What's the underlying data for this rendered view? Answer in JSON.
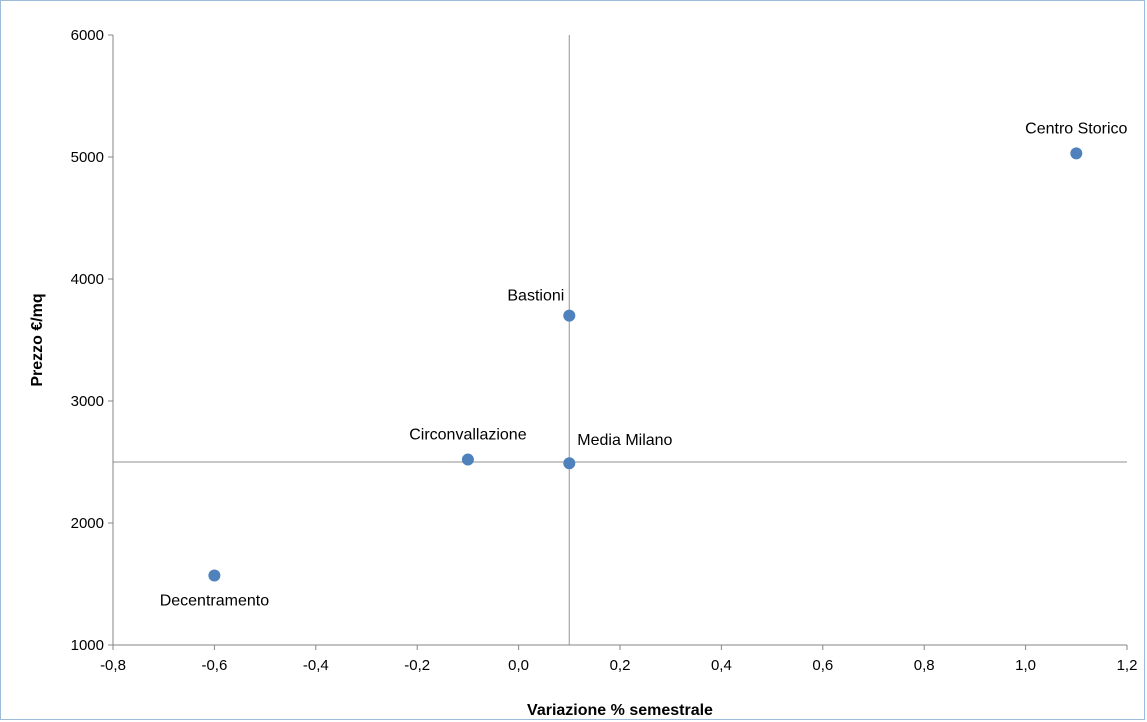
{
  "chart_data": {
    "type": "scatter",
    "xlabel": "Variazione % semestrale",
    "ylabel": "Prezzo €/mq",
    "xlim": [
      -0.8,
      1.2
    ],
    "ylim": [
      1000,
      6000
    ],
    "x_ticks": [
      "-0,8",
      "-0,6",
      "-0,4",
      "-0,2",
      "0,0",
      "0,2",
      "0,4",
      "0,6",
      "0,8",
      "1,0",
      "1,2"
    ],
    "y_ticks": [
      "1000",
      "2000",
      "3000",
      "4000",
      "5000",
      "6000"
    ],
    "grid": false,
    "reference_lines": {
      "x": 0.1,
      "y": 2500
    },
    "marker_color": "#4f81bd",
    "points": [
      {
        "label": "Centro Storico",
        "x": 1.1,
        "y": 5030,
        "label_pos": "above"
      },
      {
        "label": "Bastioni",
        "x": 0.1,
        "y": 3700,
        "label_pos": "above-left"
      },
      {
        "label": "Circonvallazione",
        "x": -0.1,
        "y": 2520,
        "label_pos": "above"
      },
      {
        "label": "Media Milano",
        "x": 0.1,
        "y": 2490,
        "label_pos": "above-right"
      },
      {
        "label": "Decentramento",
        "x": -0.6,
        "y": 1570,
        "label_pos": "below"
      }
    ]
  }
}
